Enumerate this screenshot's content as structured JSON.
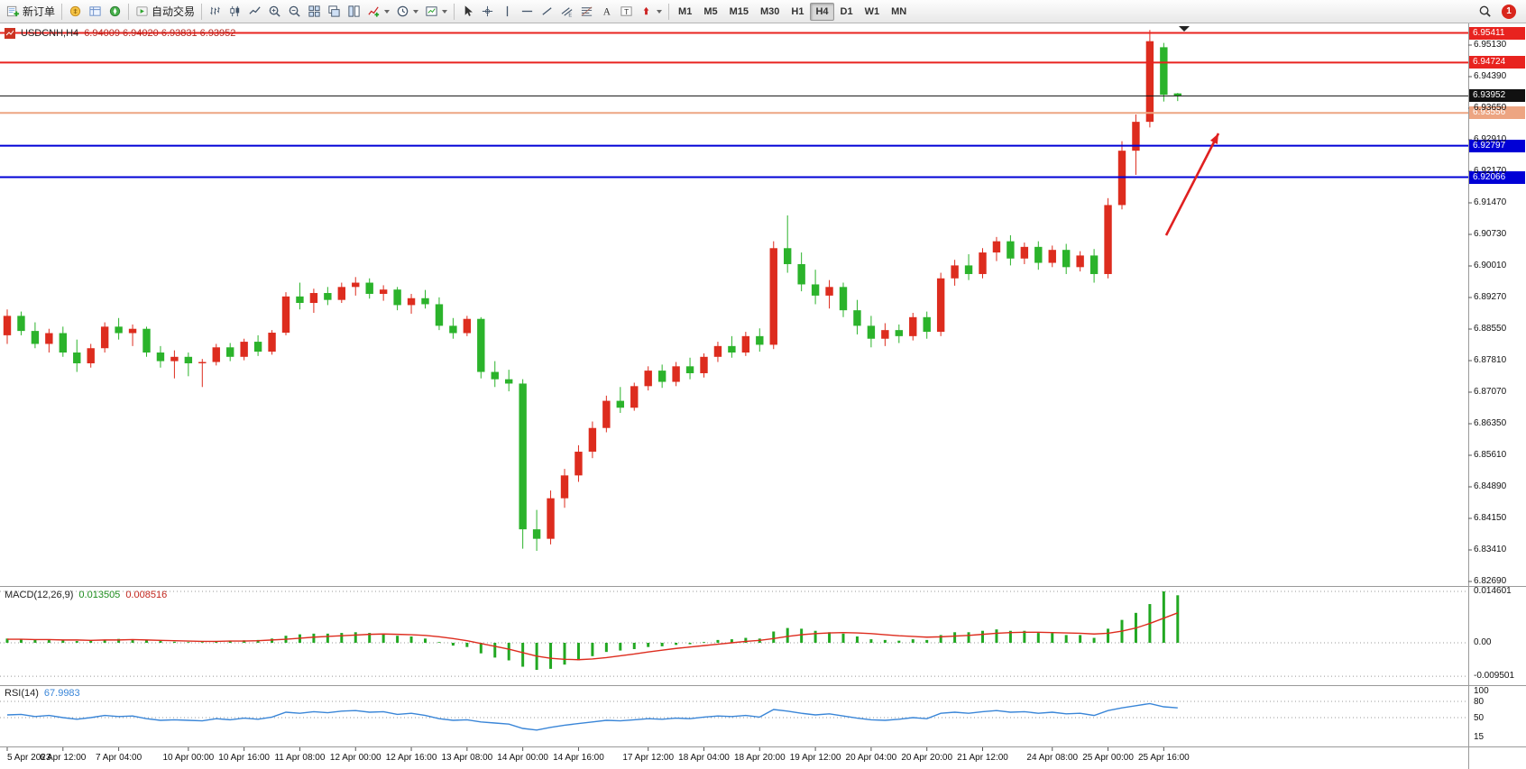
{
  "toolbar": {
    "new_order": "新订单",
    "auto_trading": "自动交易",
    "timeframes": [
      "M1",
      "M5",
      "M15",
      "M30",
      "H1",
      "H4",
      "D1",
      "W1",
      "MN"
    ],
    "active_timeframe": "H4",
    "notification_count": "1"
  },
  "symbol_header": {
    "symbol": "USDCNH,H4",
    "ohlc": "6.94009 6.94020 6.93831 6.93952"
  },
  "macd_header": {
    "name": "MACD(12,26,9)",
    "main_value": "0.013505",
    "signal_value": "0.008516"
  },
  "rsi_header": {
    "name": "RSI(14)",
    "value": "67.9983"
  },
  "colors": {
    "bull": "#dd2c1e",
    "bear": "#2bb32b",
    "macd_hist": "#22a822",
    "macd_signal": "#dd2c1e",
    "rsi_line": "#3a86d8",
    "current_price_line": "#111111",
    "level_red": "#e8231f",
    "level_blue": "#0000d6",
    "level_orange": "#eda582",
    "arrow": "#e02020"
  },
  "chart_data": [
    {
      "type": "candlestick",
      "symbol": "USDCNH",
      "timeframe": "H4",
      "y_axis": {
        "top_price": 6.9513,
        "bottom_price": 6.8269
      },
      "y_ticks": [
        "6.95130",
        "6.94390",
        "6.93650",
        "6.92910",
        "6.92170",
        "6.91470",
        "6.90730",
        "6.90010",
        "6.89270",
        "6.88550",
        "6.87810",
        "6.87070",
        "6.86350",
        "6.85610",
        "6.84890",
        "6.84150",
        "6.83410",
        "6.82690"
      ],
      "x_ticks": [
        {
          "bar": 0,
          "label": "5 Apr 2023"
        },
        {
          "bar": 4,
          "label": "6 Apr 12:00"
        },
        {
          "bar": 8,
          "label": "7 Apr 04:00"
        },
        {
          "bar": 13,
          "label": "10 Apr 00:00"
        },
        {
          "bar": 17,
          "label": "10 Apr 16:00"
        },
        {
          "bar": 21,
          "label": "11 Apr 08:00"
        },
        {
          "bar": 25,
          "label": "12 Apr 00:00"
        },
        {
          "bar": 29,
          "label": "12 Apr 16:00"
        },
        {
          "bar": 33,
          "label": "13 Apr 08:00"
        },
        {
          "bar": 37,
          "label": "14 Apr 00:00"
        },
        {
          "bar": 41,
          "label": "14 Apr 16:00"
        },
        {
          "bar": 46,
          "label": "17 Apr 12:00"
        },
        {
          "bar": 50,
          "label": "18 Apr 04:00"
        },
        {
          "bar": 54,
          "label": "18 Apr 20:00"
        },
        {
          "bar": 58,
          "label": "19 Apr 12:00"
        },
        {
          "bar": 62,
          "label": "20 Apr 04:00"
        },
        {
          "bar": 66,
          "label": "20 Apr 20:00"
        },
        {
          "bar": 70,
          "label": "21 Apr 12:00"
        },
        {
          "bar": 75,
          "label": "24 Apr 08:00"
        },
        {
          "bar": 79,
          "label": "25 Apr 00:00"
        },
        {
          "bar": 83,
          "label": "25 Apr 16:00"
        }
      ],
      "levels": [
        {
          "price": 6.95411,
          "label": "6.95411",
          "color": "#e8231f",
          "width": 2
        },
        {
          "price": 6.94724,
          "label": "6.94724",
          "color": "#e8231f",
          "width": 2
        },
        {
          "price": 6.93952,
          "label": "6.93952",
          "color": "#111111",
          "width": 1
        },
        {
          "price": 6.93556,
          "label": "6.93556",
          "color": "#eda582",
          "width": 2
        },
        {
          "price": 6.92797,
          "label": "6.92797",
          "color": "#0000d6",
          "width": 2
        },
        {
          "price": 6.92066,
          "label": "6.92066",
          "color": "#0000d6",
          "width": 2
        }
      ],
      "arrow": {
        "color": "#e02020",
        "from": [
          1293,
          261
        ],
        "to": [
          1351,
          148
        ]
      },
      "bars": [
        [
          6.884,
          6.89,
          6.882,
          6.8885
        ],
        [
          6.8885,
          6.8895,
          6.884,
          6.885
        ],
        [
          6.885,
          6.887,
          6.881,
          6.882
        ],
        [
          6.882,
          6.8855,
          6.88,
          6.8845
        ],
        [
          6.8845,
          6.886,
          6.879,
          6.88
        ],
        [
          6.88,
          6.883,
          6.8755,
          6.8775
        ],
        [
          6.8775,
          6.882,
          6.8765,
          6.881
        ],
        [
          6.881,
          6.887,
          6.88,
          6.886
        ],
        [
          6.886,
          6.888,
          6.883,
          6.8845
        ],
        [
          6.8845,
          6.8865,
          6.8815,
          6.8855
        ],
        [
          6.8855,
          6.886,
          6.879,
          6.88
        ],
        [
          6.88,
          6.8815,
          6.8765,
          6.878
        ],
        [
          6.878,
          6.8805,
          6.874,
          6.879
        ],
        [
          6.879,
          6.88,
          6.8745,
          6.8775
        ],
        [
          6.8775,
          6.8785,
          6.872,
          6.8778
        ],
        [
          6.8778,
          6.882,
          6.877,
          6.8812
        ],
        [
          6.8812,
          6.8822,
          6.878,
          6.879
        ],
        [
          6.879,
          6.8832,
          6.8782,
          6.8825
        ],
        [
          6.8825,
          6.884,
          6.8792,
          6.8802
        ],
        [
          6.8802,
          6.8852,
          6.8795,
          6.8846
        ],
        [
          6.8846,
          6.894,
          6.884,
          6.893
        ],
        [
          6.893,
          6.8962,
          6.89,
          6.8915
        ],
        [
          6.8915,
          6.8948,
          6.8892,
          6.8938
        ],
        [
          6.8938,
          6.8952,
          6.891,
          6.8922
        ],
        [
          6.8922,
          6.8962,
          6.8915,
          6.8952
        ],
        [
          6.8952,
          6.8975,
          6.8932,
          6.8962
        ],
        [
          6.8962,
          6.8972,
          6.8925,
          6.8936
        ],
        [
          6.8936,
          6.8956,
          6.892,
          6.8946
        ],
        [
          6.8946,
          6.8952,
          6.8898,
          6.891
        ],
        [
          6.891,
          6.8936,
          6.889,
          6.8926
        ],
        [
          6.8926,
          6.8945,
          6.8902,
          6.8912
        ],
        [
          6.8912,
          6.8928,
          6.8852,
          6.8862
        ],
        [
          6.8862,
          6.888,
          6.8832,
          6.8845
        ],
        [
          6.8845,
          6.8885,
          6.8838,
          6.8878
        ],
        [
          6.8878,
          6.8882,
          6.874,
          6.8755
        ],
        [
          6.8755,
          6.878,
          6.872,
          6.8738
        ],
        [
          6.8738,
          6.876,
          6.871,
          6.8728
        ],
        [
          6.8728,
          6.8738,
          6.8345,
          6.839
        ],
        [
          6.839,
          6.8435,
          6.834,
          6.8368
        ],
        [
          6.8368,
          6.848,
          6.8355,
          6.8462
        ],
        [
          6.8462,
          6.853,
          6.844,
          6.8515
        ],
        [
          6.8515,
          6.8585,
          6.85,
          6.857
        ],
        [
          6.857,
          6.864,
          6.8555,
          6.8625
        ],
        [
          6.8625,
          6.87,
          6.8615,
          6.8688
        ],
        [
          6.8688,
          6.872,
          6.866,
          6.8672
        ],
        [
          6.8672,
          6.873,
          6.8665,
          6.8722
        ],
        [
          6.8722,
          6.8768,
          6.8712,
          6.8758
        ],
        [
          6.8758,
          6.8772,
          6.8718,
          6.8732
        ],
        [
          6.8732,
          6.8778,
          6.8722,
          6.8768
        ],
        [
          6.8768,
          6.8788,
          6.8738,
          6.8752
        ],
        [
          6.8752,
          6.8798,
          6.8742,
          6.879
        ],
        [
          6.879,
          6.8825,
          6.8778,
          6.8815
        ],
        [
          6.8815,
          6.8838,
          6.8788,
          6.88
        ],
        [
          6.88,
          6.8848,
          6.8792,
          6.8838
        ],
        [
          6.8838,
          6.8856,
          6.8802,
          6.8818
        ],
        [
          6.8818,
          6.9058,
          6.8808,
          6.9042
        ],
        [
          6.9042,
          6.9118,
          6.8985,
          6.9005
        ],
        [
          6.9005,
          6.9032,
          6.8942,
          6.8958
        ],
        [
          6.8958,
          6.8992,
          6.8912,
          6.8932
        ],
        [
          6.8932,
          6.8968,
          6.8902,
          6.8952
        ],
        [
          6.8952,
          6.8962,
          6.8882,
          6.8898
        ],
        [
          6.8898,
          6.8922,
          6.8842,
          6.8862
        ],
        [
          6.8862,
          6.8885,
          6.8812,
          6.8832
        ],
        [
          6.8832,
          6.8868,
          6.8815,
          6.8852
        ],
        [
          6.8852,
          6.8865,
          6.8822,
          6.8838
        ],
        [
          6.8838,
          6.8892,
          6.8828,
          6.8882
        ],
        [
          6.8882,
          6.8895,
          6.8832,
          6.8848
        ],
        [
          6.8848,
          6.8985,
          6.8838,
          6.8972
        ],
        [
          6.8972,
          6.9015,
          6.8955,
          6.9002
        ],
        [
          6.9002,
          6.9028,
          6.8968,
          6.8982
        ],
        [
          6.8982,
          6.9042,
          6.8972,
          6.9032
        ],
        [
          6.9032,
          6.9068,
          6.9012,
          6.9058
        ],
        [
          6.9058,
          6.9072,
          6.9002,
          6.9018
        ],
        [
          6.9018,
          6.9055,
          6.9005,
          6.9045
        ],
        [
          6.9045,
          6.9058,
          6.8992,
          6.9008
        ],
        [
          6.9008,
          6.9048,
          6.8998,
          6.9038
        ],
        [
          6.9038,
          6.9052,
          6.8982,
          6.8998
        ],
        [
          6.8998,
          6.9035,
          6.8988,
          6.9025
        ],
        [
          6.9025,
          6.904,
          6.8962,
          6.8982
        ],
        [
          6.8982,
          6.9158,
          6.8972,
          6.9142
        ],
        [
          6.9142,
          6.929,
          6.9132,
          6.9268
        ],
        [
          6.9268,
          6.9352,
          6.9212,
          6.9335
        ],
        [
          6.9335,
          6.9548,
          6.9322,
          6.9522
        ],
        [
          6.9508,
          6.9518,
          6.9382,
          6.9398
        ],
        [
          6.94009,
          6.9402,
          6.93831,
          6.93952
        ]
      ]
    },
    {
      "type": "bar",
      "name": "MACD",
      "params": "12,26,9",
      "y_ticks": [
        {
          "value": 0.014601,
          "label": "0.014601"
        },
        {
          "value": 0,
          "label": "0.00"
        },
        {
          "value": -0.009501,
          "label": "-0.009501"
        }
      ],
      "values": [
        0.0012,
        0.001,
        0.0008,
        0.0009,
        0.0007,
        0.0005,
        0.0006,
        0.0009,
        0.0011,
        0.001,
        0.0008,
        0.0005,
        0.0003,
        0.0002,
        0.0002,
        0.0004,
        0.0005,
        0.0007,
        0.0008,
        0.0012,
        0.002,
        0.0024,
        0.0026,
        0.0026,
        0.0028,
        0.003,
        0.0028,
        0.0026,
        0.002,
        0.0018,
        0.0012,
        0.0002,
        -0.0008,
        -0.0012,
        -0.003,
        -0.0042,
        -0.005,
        -0.0068,
        -0.0077,
        -0.0074,
        -0.0062,
        -0.005,
        -0.0038,
        -0.0026,
        -0.0022,
        -0.0018,
        -0.0012,
        -0.001,
        -0.0006,
        -0.0004,
        0.0002,
        0.0008,
        0.001,
        0.0014,
        0.0012,
        0.0032,
        0.0042,
        0.004,
        0.0034,
        0.003,
        0.0026,
        0.0018,
        0.001,
        0.0008,
        0.0006,
        0.001,
        0.0008,
        0.0022,
        0.003,
        0.003,
        0.0034,
        0.0038,
        0.0034,
        0.0034,
        0.0028,
        0.0028,
        0.0022,
        0.0022,
        0.0014,
        0.004,
        0.0065,
        0.0085,
        0.011,
        0.0146,
        0.0135
      ],
      "signal": [
        0.001,
        0.001,
        0.0009,
        0.0009,
        0.0008,
        0.0008,
        0.0007,
        0.0008,
        0.0008,
        0.0009,
        0.0008,
        0.0007,
        0.0006,
        0.0005,
        0.0004,
        0.0004,
        0.0005,
        0.0005,
        0.0006,
        0.0008,
        0.001,
        0.0013,
        0.0016,
        0.0018,
        0.002,
        0.0022,
        0.0024,
        0.0025,
        0.0024,
        0.0023,
        0.0021,
        0.0017,
        0.0012,
        0.0006,
        -0.0002,
        -0.001,
        -0.0018,
        -0.0028,
        -0.0038,
        -0.0044,
        -0.0047,
        -0.0048,
        -0.0046,
        -0.0042,
        -0.0037,
        -0.0032,
        -0.0026,
        -0.0021,
        -0.0016,
        -0.0012,
        -0.0008,
        -0.0004,
        0.0,
        0.0004,
        0.0007,
        0.0012,
        0.0018,
        0.0023,
        0.0026,
        0.0028,
        0.0029,
        0.0028,
        0.0026,
        0.0023,
        0.002,
        0.0018,
        0.0016,
        0.0017,
        0.0019,
        0.0021,
        0.0024,
        0.0027,
        0.0029,
        0.003,
        0.003,
        0.0029,
        0.0028,
        0.0027,
        0.0025,
        0.0027,
        0.0033,
        0.0042,
        0.0055,
        0.007,
        0.0085
      ]
    },
    {
      "type": "line",
      "name": "RSI",
      "params": "14",
      "y_ticks": [
        {
          "value": 100,
          "label": "100"
        },
        {
          "value": 80,
          "label": "80"
        },
        {
          "value": 50,
          "label": "50"
        },
        {
          "value": 15,
          "label": "15"
        }
      ],
      "levels": [
        80,
        50
      ],
      "values": [
        55,
        56,
        52,
        54,
        50,
        47,
        50,
        54,
        52,
        53,
        48,
        45,
        46,
        45,
        44,
        48,
        46,
        49,
        47,
        51,
        60,
        58,
        61,
        59,
        62,
        63,
        60,
        61,
        56,
        58,
        54,
        48,
        45,
        46,
        42,
        40,
        38,
        30,
        27,
        32,
        36,
        39,
        42,
        45,
        44,
        46,
        48,
        47,
        49,
        48,
        51,
        53,
        52,
        54,
        51,
        65,
        62,
        58,
        55,
        57,
        53,
        49,
        46,
        45,
        47,
        50,
        48,
        58,
        60,
        58,
        61,
        63,
        60,
        61,
        58,
        60,
        57,
        58,
        54,
        63,
        68,
        72,
        76,
        70,
        68
      ]
    }
  ]
}
